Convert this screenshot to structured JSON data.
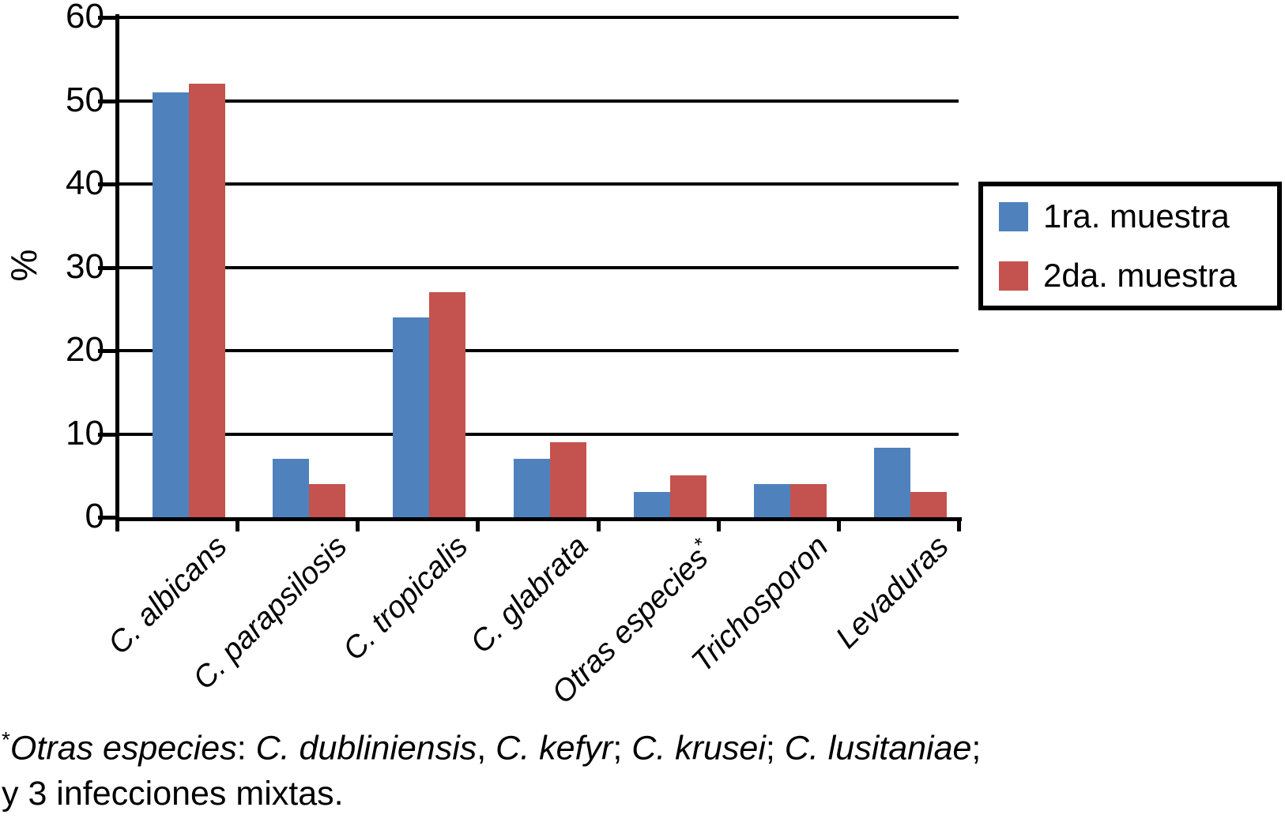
{
  "chart_data": {
    "type": "bar",
    "title": "",
    "ylabel": "%",
    "xlabel": "",
    "ylim": [
      0,
      60
    ],
    "yticks": [
      0,
      10,
      20,
      30,
      40,
      50,
      60
    ],
    "grid": "horizontal",
    "legend_position": "right, boxed",
    "categories": [
      "C. albicans",
      "C. parapsilosis",
      "C. tropicalis",
      "C. glabrata",
      "Otras especies*",
      "Trichosporon",
      "Levaduras"
    ],
    "series": [
      {
        "name": "1ra. muestra",
        "color": "#4F81BD",
        "values": [
          51,
          7,
          24,
          7,
          3,
          4,
          8.3
        ]
      },
      {
        "name": "2da. muestra",
        "color": "#C4524E",
        "values": [
          52,
          4,
          27,
          9,
          5,
          4,
          3
        ]
      }
    ],
    "axis_color": "#000000",
    "x_labels_style": "italic, rotated 45 degrees"
  },
  "footnote": {
    "line1_segments": [
      {
        "text": "*",
        "style": "sup"
      },
      {
        "text": "Otras especies",
        "style": "italic"
      },
      {
        "text": ": ",
        "style": "normal"
      },
      {
        "text": "C. dubliniensis",
        "style": "italic"
      },
      {
        "text": ", ",
        "style": "normal"
      },
      {
        "text": "C. kefyr",
        "style": "italic"
      },
      {
        "text": "; ",
        "style": "normal"
      },
      {
        "text": "C. krusei",
        "style": "italic"
      },
      {
        "text": "; ",
        "style": "normal"
      },
      {
        "text": "C. lusitaniae",
        "style": "italic"
      },
      {
        "text": ";",
        "style": "normal"
      }
    ],
    "line2": "y 3 infecciones mixtas."
  }
}
